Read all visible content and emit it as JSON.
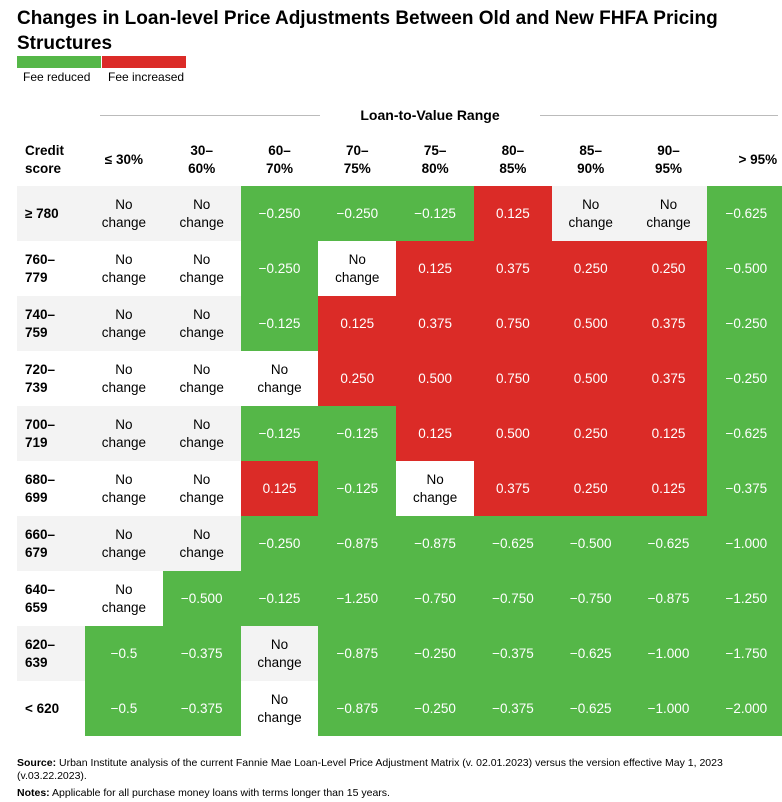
{
  "header": {
    "title": "Changes in Loan-level Price Adjustments Between Old and New FHFA Pricing Structures"
  },
  "legend": [
    {
      "label": "Fee reduced",
      "color": "#55b748"
    },
    {
      "label": "Fee increased",
      "color": "#db2b27"
    }
  ],
  "table": {
    "group_header": "Loan-to-Value Range",
    "columns": [
      "Credit\nscore",
      "≤ 30%",
      "30–\n60%",
      "60–\n70%",
      "70–\n75%",
      "75–\n80%",
      "80–\n85%",
      "85–\n90%",
      "90–\n95%",
      "> 95%"
    ],
    "rows": [
      [
        "≥ 780",
        "No\nchange",
        "No\nchange",
        "−0.250",
        "−0.250",
        "−0.125",
        "0.125",
        "No\nchange",
        "No\nchange",
        "−0.625"
      ],
      [
        "760–\n779",
        "No\nchange",
        "No\nchange",
        "−0.250",
        "No\nchange",
        "0.125",
        "0.375",
        "0.250",
        "0.250",
        "−0.500"
      ],
      [
        "740–\n759",
        "No\nchange",
        "No\nchange",
        "−0.125",
        "0.125",
        "0.375",
        "0.750",
        "0.500",
        "0.375",
        "−0.250"
      ],
      [
        "720–\n739",
        "No\nchange",
        "No\nchange",
        "No\nchange",
        "0.250",
        "0.500",
        "0.750",
        "0.500",
        "0.375",
        "−0.250"
      ],
      [
        "700–\n719",
        "No\nchange",
        "No\nchange",
        "−0.125",
        "−0.125",
        "0.125",
        "0.500",
        "0.250",
        "0.125",
        "−0.625"
      ],
      [
        "680–\n699",
        "No\nchange",
        "No\nchange",
        "0.125",
        "−0.125",
        "No\nchange",
        "0.375",
        "0.250",
        "0.125",
        "−0.375"
      ],
      [
        "660–\n679",
        "No\nchange",
        "No\nchange",
        "−0.250",
        "−0.875",
        "−0.875",
        "−0.625",
        "−0.500",
        "−0.625",
        "−1.000"
      ],
      [
        "640–\n659",
        "No\nchange",
        "−0.500",
        "−0.125",
        "−1.250",
        "−0.750",
        "−0.750",
        "−0.750",
        "−0.875",
        "−1.250"
      ],
      [
        "620–\n639",
        "−0.5",
        "−0.375",
        "No\nchange",
        "−0.875",
        "−0.250",
        "−0.375",
        "−0.625",
        "−1.000",
        "−1.750"
      ],
      [
        "< 620",
        "−0.5",
        "−0.375",
        "No\nchange",
        "−0.875",
        "−0.250",
        "−0.375",
        "−0.625",
        "−1.000",
        "−2.000"
      ]
    ]
  },
  "footer": {
    "source_label": "Source:",
    "source_text": "Urban Institute analysis of the current Fannie Mae Loan-Level Price Adjustment Matrix (v. 02.01.2023) versus the version effective May 1, 2023 (v.03.22.2023).",
    "notes_label": "Notes:",
    "notes_text": "Applicable for all purchase money loans with terms longer than 15 years."
  }
}
